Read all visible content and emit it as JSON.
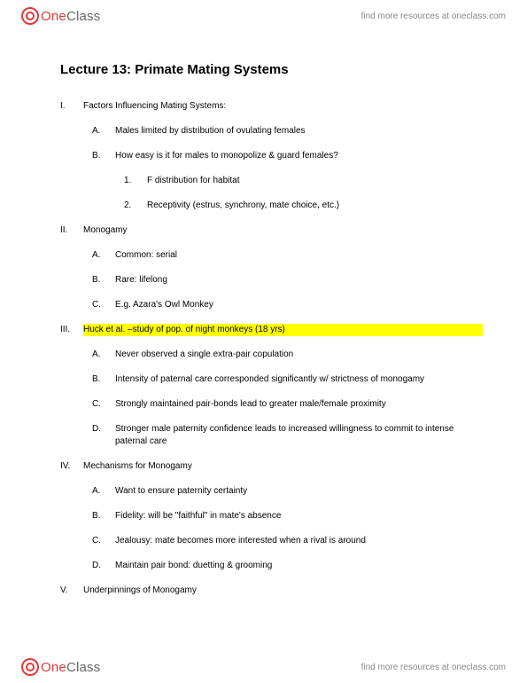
{
  "brand": {
    "one": "One",
    "class": "Class",
    "tagline": "find more resources at oneclass.com"
  },
  "title": "Lecture 13: Primate Mating Systems",
  "outline": [
    {
      "lvl": 1,
      "marker": "I.",
      "text": "Factors Influencing Mating Systems:"
    },
    {
      "lvl": 2,
      "marker": "A.",
      "text": "Males limited by distribution of ovulating females"
    },
    {
      "lvl": 2,
      "marker": "B.",
      "text": "How easy is it for males to monopolize & guard females?"
    },
    {
      "lvl": 3,
      "marker": "1.",
      "text": "F distribution for habitat"
    },
    {
      "lvl": 3,
      "marker": "2.",
      "text": "Receptivity (estrus, synchrony, mate choice, etc.)"
    },
    {
      "lvl": 1,
      "marker": "II.",
      "text": "Monogamy"
    },
    {
      "lvl": 2,
      "marker": "A.",
      "text": "Common: serial"
    },
    {
      "lvl": 2,
      "marker": "B.",
      "text": "Rare: lifelong"
    },
    {
      "lvl": 2,
      "marker": "C.",
      "text": "E.g. Azara's Owl Monkey"
    },
    {
      "lvl": 1,
      "marker": "III.",
      "text": "Huck et al. –study of pop. of night monkeys (18 yrs)",
      "highlight": true
    },
    {
      "lvl": 2,
      "marker": "A.",
      "text": "Never observed a single extra-pair copulation"
    },
    {
      "lvl": 2,
      "marker": "B.",
      "text": "Intensity of paternal care corresponded significantly w/ strictness of monogamy"
    },
    {
      "lvl": 2,
      "marker": "C.",
      "text": "Strongly maintained pair-bonds lead to greater male/female proximity"
    },
    {
      "lvl": 2,
      "marker": "D.",
      "text": "Stronger male paternity confidence leads to increased willingness to commit to intense paternal care"
    },
    {
      "lvl": 1,
      "marker": "IV.",
      "text": "Mechanisms for Monogamy"
    },
    {
      "lvl": 2,
      "marker": "A.",
      "text": "Want to ensure paternity certainty"
    },
    {
      "lvl": 2,
      "marker": "B.",
      "text": "Fidelity: will be \"faithful\" in mate's absence"
    },
    {
      "lvl": 2,
      "marker": "C.",
      "text": "Jealousy: mate becomes more interested when a rival is around"
    },
    {
      "lvl": 2,
      "marker": "D.",
      "text": "Maintain pair bond: duetting & grooming"
    },
    {
      "lvl": 1,
      "marker": "V.",
      "text": "Underpinnings of Monogamy"
    }
  ],
  "colors": {
    "brand_red": "#e03a3a",
    "text": "#000000",
    "tagline": "#888888",
    "highlight": "#ffff00",
    "background": "#ffffff"
  }
}
